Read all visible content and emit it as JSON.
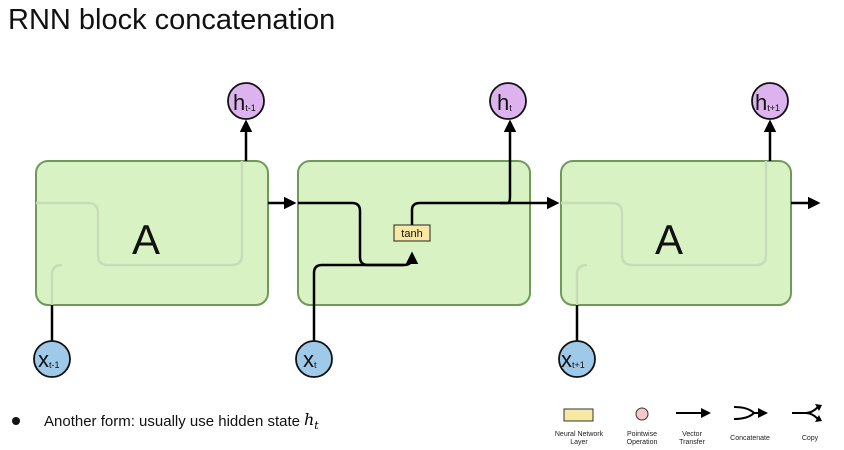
{
  "title": "RNN block concatenation",
  "cells": [
    {
      "label": "A"
    },
    {
      "label": "",
      "layer": "tanh"
    },
    {
      "label": "A"
    }
  ],
  "outputs": [
    {
      "main": "h",
      "sub": "t-1"
    },
    {
      "main": "h",
      "sub": "t"
    },
    {
      "main": "h",
      "sub": "t+1"
    }
  ],
  "inputs": [
    {
      "main": "x",
      "sub": "t-1"
    },
    {
      "main": "x",
      "sub": "t"
    },
    {
      "main": "x",
      "sub": "t+1"
    }
  ],
  "bullet": {
    "text": "Another form: usually use hidden state",
    "math_main": "h",
    "math_sub": "t"
  },
  "legend": [
    {
      "icon": "neural-network-layer-icon",
      "line1": "Neural Network",
      "line2": "Layer"
    },
    {
      "icon": "pointwise-operation-icon",
      "line1": "Pointwise",
      "line2": "Operation"
    },
    {
      "icon": "vector-transfer-icon",
      "line1": "Vector",
      "line2": "Transfer"
    },
    {
      "icon": "concatenate-icon",
      "line1": "Concatenate",
      "line2": ""
    },
    {
      "icon": "copy-icon",
      "line1": "Copy",
      "line2": ""
    }
  ],
  "colors": {
    "cell_fill": "#d9f2c4",
    "cell_stroke": "#6f9a5a",
    "output_node": "#dcb3ee",
    "input_node": "#9fc9e9",
    "layer_box": "#f7e9a3",
    "pointwise": "#f5c8cc"
  }
}
